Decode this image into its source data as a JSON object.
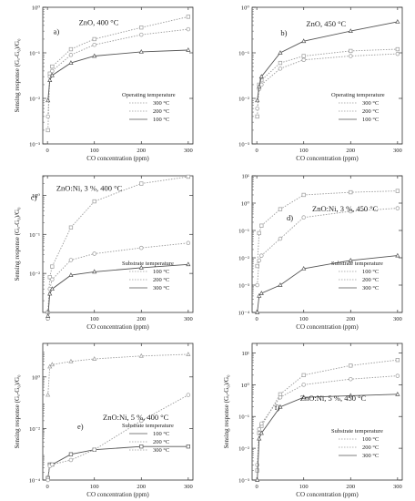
{
  "ylabel_left": "Sensing response (Gₐ-G₀)/G₀",
  "xlabel": "CO concentration (ppm)",
  "chart_data": [
    {
      "type": "line",
      "panel": "a)",
      "title": "ZnO, 400 °C",
      "xlabel": "CO concentration (ppm)",
      "ylabel": "Sensing response (Gₐ-G₀)/G₀",
      "x": [
        1,
        5,
        10,
        50,
        100,
        200,
        300
      ],
      "xlim": [
        -10,
        310
      ],
      "xticks": [
        0,
        100,
        200,
        300
      ],
      "xticklabels": [
        "0",
        "100",
        "200",
        "300"
      ],
      "ylim_log10": [
        -3,
        0
      ],
      "yticks_log10": [
        -3,
        -2,
        -1,
        0
      ],
      "yticklabels": [
        "10⁻³",
        "10⁻²",
        "10⁻¹",
        "10⁰"
      ],
      "legend": {
        "title": "Operating temperature",
        "position": "lower-right"
      },
      "series": [
        {
          "name": "300 °C",
          "marker": "square",
          "style": "dotted",
          "color": "#9a9a9a",
          "values": [
            0.002,
            0.035,
            0.05,
            0.12,
            0.2,
            0.36,
            0.62
          ]
        },
        {
          "name": "200 °C",
          "marker": "circle",
          "style": "dotted",
          "color": "#9a9a9a",
          "values": [
            0.004,
            0.03,
            0.04,
            0.09,
            0.15,
            0.25,
            0.33
          ]
        },
        {
          "name": "100 °C",
          "marker": "triangle",
          "style": "solid",
          "color": "#555555",
          "values": [
            0.009,
            0.025,
            0.032,
            0.06,
            0.085,
            0.105,
            0.115
          ]
        }
      ]
    },
    {
      "type": "line",
      "panel": "b)",
      "title": "ZnO, 450 °C",
      "xlabel": "CO concentration (ppm)",
      "ylabel": "",
      "x": [
        1,
        5,
        10,
        50,
        100,
        200,
        300
      ],
      "xlim": [
        -10,
        310
      ],
      "xticks": [
        0,
        100,
        200,
        300
      ],
      "xticklabels": [
        "0",
        "100",
        "200",
        "300"
      ],
      "ylim_log10": [
        -3,
        0
      ],
      "yticks_log10": [
        -3,
        -2,
        -1,
        0
      ],
      "yticklabels": [
        "10⁻³",
        "10⁻²",
        "10⁻¹",
        "10⁰"
      ],
      "legend": {
        "title": "Operating temperature",
        "position": "lower-right"
      },
      "series": [
        {
          "name": "300 °C",
          "marker": "square",
          "style": "dotted",
          "color": "#9a9a9a",
          "values": [
            0.004,
            0.02,
            0.025,
            0.06,
            0.085,
            0.11,
            0.12
          ]
        },
        {
          "name": "200 °C",
          "marker": "circle",
          "style": "dotted",
          "color": "#9a9a9a",
          "values": [
            0.006,
            0.016,
            0.02,
            0.045,
            0.07,
            0.085,
            0.095
          ]
        },
        {
          "name": "100 °C",
          "marker": "triangle",
          "style": "solid",
          "color": "#555555",
          "values": [
            0.009,
            0.018,
            0.03,
            0.1,
            0.18,
            0.3,
            0.48
          ]
        }
      ]
    },
    {
      "type": "line",
      "panel": "c)",
      "title": "ZnO:Ni, 3 %, 400 °C",
      "xlabel": "CO concentration (ppm)",
      "ylabel": "Sensing response (Gₐ-G₀)/G₀",
      "x": [
        1,
        5,
        10,
        50,
        100,
        200,
        300
      ],
      "xlim": [
        -10,
        310
      ],
      "xticks": [
        0,
        100,
        200,
        300
      ],
      "xticklabels": [
        "0",
        "100",
        "200",
        "300"
      ],
      "ylim_log10": [
        -3,
        0.5
      ],
      "yticks_log10": [
        -2,
        -1,
        0
      ],
      "yticklabels": [
        "10⁻²",
        "10⁻¹",
        "10⁰"
      ],
      "legend": {
        "title": "Substrate temperature",
        "position": "lower-right"
      },
      "series": [
        {
          "name": "100 °C",
          "marker": "square",
          "style": "dotted",
          "color": "#9a9a9a",
          "values": [
            0.001,
            0.008,
            0.015,
            0.15,
            0.7,
            2,
            3
          ]
        },
        {
          "name": "200 °C",
          "marker": "circle",
          "style": "dotted",
          "color": "#9a9a9a",
          "values": [
            0.0007,
            0.004,
            0.007,
            0.022,
            0.032,
            0.045,
            0.06
          ]
        },
        {
          "name": "300 °C",
          "marker": "triangle",
          "style": "solid",
          "color": "#555555",
          "values": [
            0.0008,
            0.003,
            0.004,
            0.009,
            0.011,
            0.014,
            0.017
          ]
        }
      ]
    },
    {
      "type": "line",
      "panel": "d)",
      "title": "ZnO:Ni, 3 %, 450 °C",
      "xlabel": "CO concentration (ppm)",
      "ylabel": "",
      "x": [
        1,
        5,
        10,
        50,
        100,
        200,
        300
      ],
      "xlim": [
        -10,
        310
      ],
      "xticks": [
        0,
        100,
        200,
        300
      ],
      "xticklabels": [
        "0",
        "100",
        "200",
        "300"
      ],
      "ylim_log10": [
        -4,
        1
      ],
      "yticks_log10": [
        -4,
        -3,
        -2,
        -1,
        0,
        1
      ],
      "yticklabels": [
        "10⁻⁴",
        "10⁻³",
        "10⁻²",
        "10⁻¹",
        "10⁰",
        "10¹"
      ],
      "legend": {
        "title": "Substrate temperature",
        "position": "lower-right"
      },
      "series": [
        {
          "name": "100 °C",
          "marker": "square",
          "style": "dotted",
          "color": "#9a9a9a",
          "values": [
            0.005,
            0.08,
            0.15,
            0.6,
            2.0,
            2.5,
            2.8
          ]
        },
        {
          "name": "200 °C",
          "marker": "circle",
          "style": "dotted",
          "color": "#9a9a9a",
          "values": [
            0.001,
            0.008,
            0.012,
            0.05,
            0.3,
            0.5,
            0.65
          ]
        },
        {
          "name": "300 °C",
          "marker": "triangle",
          "style": "solid",
          "color": "#555555",
          "values": [
            0.0001,
            0.0004,
            0.0005,
            0.001,
            0.004,
            0.008,
            0.012
          ]
        }
      ]
    },
    {
      "type": "line",
      "panel": "e)",
      "title": "ZnO:Ni, 5 %, 400 °C",
      "xlabel": "CO concentration (ppm)",
      "ylabel": "Sensing response (Gₐ-G₀)/G₀",
      "x": [
        1,
        5,
        10,
        50,
        100,
        200,
        300
      ],
      "xlim": [
        -10,
        310
      ],
      "xticks": [
        0,
        100,
        200,
        300
      ],
      "xticklabels": [
        "0",
        "100",
        "200",
        "300"
      ],
      "ylim_log10": [
        -4,
        1.3
      ],
      "yticks_log10": [
        -4,
        -2,
        0
      ],
      "yticklabels": [
        "10⁻⁴",
        "10⁻²",
        "10⁰"
      ],
      "legend": {
        "title": "Substrate temperature",
        "position": "lower-right"
      },
      "series": [
        {
          "name": "100 °C",
          "marker": "square",
          "style": "solid",
          "color": "#555555",
          "values": [
            0.00012,
            0.0004,
            0.0004,
            0.001,
            0.0015,
            0.002,
            0.002
          ]
        },
        {
          "name": "200 °C",
          "marker": "circle",
          "style": "dotted",
          "color": "#9a9a9a",
          "values": [
            0.0001,
            0.00035,
            0.0004,
            0.0006,
            0.0015,
            0.02,
            0.2
          ]
        },
        {
          "name": "300 °C",
          "marker": "triangle",
          "style": "dotted",
          "color": "#9a9a9a",
          "values": [
            0.2,
            2.5,
            3,
            4,
            5,
            6.5,
            7.5
          ]
        }
      ]
    },
    {
      "type": "line",
      "panel": "f)",
      "title": "ZnO:Ni, 5 %, 450 °C",
      "xlabel": "CO concentration (ppm)",
      "ylabel": "Sensing response (Gₐ-G₀)/G₀",
      "x": [
        1,
        5,
        10,
        50,
        100,
        200,
        300
      ],
      "xlim": [
        -10,
        310
      ],
      "xticks": [
        0,
        100,
        200,
        300
      ],
      "xticklabels": [
        "0",
        "100",
        "200",
        "300"
      ],
      "ylim_log10": [
        -3,
        1.3
      ],
      "yticks_log10": [
        -3,
        -2,
        -1,
        0,
        1
      ],
      "yticklabels": [
        "10⁻³",
        "10⁻²",
        "10⁻¹",
        "10⁰",
        "10¹"
      ],
      "legend": {
        "title": "Substrate temperature",
        "position": "lower-right"
      },
      "series": [
        {
          "name": "100 °C",
          "marker": "square",
          "style": "dotted",
          "color": "#9a9a9a",
          "values": [
            0.002,
            0.03,
            0.05,
            0.5,
            2.0,
            4.0,
            6.0
          ]
        },
        {
          "name": "200 °C",
          "marker": "circle",
          "style": "dotted",
          "color": "#9a9a9a",
          "values": [
            0.003,
            0.04,
            0.06,
            0.4,
            1.0,
            1.5,
            1.9
          ]
        },
        {
          "name": "300 °C",
          "marker": "triangle",
          "style": "solid",
          "color": "#555555",
          "values": [
            0.001,
            0.02,
            0.03,
            0.2,
            0.4,
            0.45,
            0.5
          ]
        }
      ]
    }
  ]
}
